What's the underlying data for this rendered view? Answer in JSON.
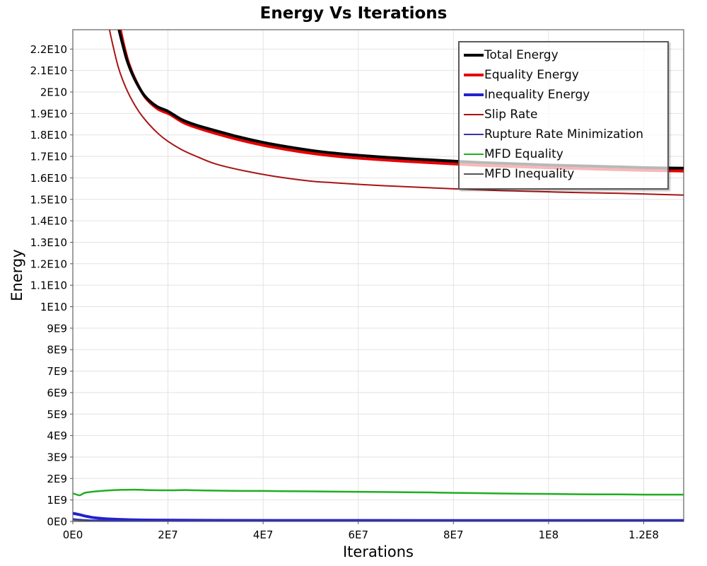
{
  "chart_data": {
    "type": "line",
    "title": "Energy Vs Iterations",
    "xlabel": "Iterations",
    "ylabel": "Energy",
    "xlim": [
      0,
      128400000
    ],
    "ylim": [
      0,
      22900000000
    ],
    "grid": true,
    "legend_position": "top-right",
    "x_ticks": [
      {
        "v": 0,
        "label": "0E0"
      },
      {
        "v": 20000000.0,
        "label": "2E7"
      },
      {
        "v": 40000000.0,
        "label": "4E7"
      },
      {
        "v": 60000000.0,
        "label": "6E7"
      },
      {
        "v": 80000000.0,
        "label": "8E7"
      },
      {
        "v": 100000000.0,
        "label": "1E8"
      },
      {
        "v": 120000000.0,
        "label": "1.2E8"
      }
    ],
    "y_ticks": [
      {
        "v": 0,
        "label": "0E0"
      },
      {
        "v": 1000000000.0,
        "label": "1E9"
      },
      {
        "v": 2000000000.0,
        "label": "2E9"
      },
      {
        "v": 3000000000.0,
        "label": "3E9"
      },
      {
        "v": 4000000000.0,
        "label": "4E9"
      },
      {
        "v": 5000000000.0,
        "label": "5E9"
      },
      {
        "v": 6000000000.0,
        "label": "6E9"
      },
      {
        "v": 7000000000.0,
        "label": "7E9"
      },
      {
        "v": 8000000000.0,
        "label": "8E9"
      },
      {
        "v": 9000000000.0,
        "label": "9E9"
      },
      {
        "v": 10000000000.0,
        "label": "1E10"
      },
      {
        "v": 11000000000.0,
        "label": "1.1E10"
      },
      {
        "v": 12000000000.0,
        "label": "1.2E10"
      },
      {
        "v": 13000000000.0,
        "label": "1.3E10"
      },
      {
        "v": 14000000000.0,
        "label": "1.4E10"
      },
      {
        "v": 15000000000.0,
        "label": "1.5E10"
      },
      {
        "v": 16000000000.0,
        "label": "1.6E10"
      },
      {
        "v": 17000000000.0,
        "label": "1.7E10"
      },
      {
        "v": 18000000000.0,
        "label": "1.8E10"
      },
      {
        "v": 19000000000.0,
        "label": "1.9E10"
      },
      {
        "v": 20000000000.0,
        "label": "2E10"
      },
      {
        "v": 21000000000.0,
        "label": "2.1E10"
      },
      {
        "v": 22000000000.0,
        "label": "2.2E10"
      }
    ],
    "series": [
      {
        "name": "Total Energy",
        "color": "#000000",
        "width": 4,
        "z": 7,
        "points": [
          [
            9700000.0,
            22900000000.0
          ],
          [
            10500000.0,
            22200000000.0
          ],
          [
            11500000.0,
            21400000000.0
          ],
          [
            13000000.0,
            20600000000.0
          ],
          [
            15000000.0,
            19850000000.0
          ],
          [
            17500000.0,
            19350000000.0
          ],
          [
            20000000.0,
            19100000000.0
          ],
          [
            23000000.0,
            18700000000.0
          ],
          [
            26000000.0,
            18450000000.0
          ],
          [
            30000000.0,
            18200000000.0
          ],
          [
            35000000.0,
            17900000000.0
          ],
          [
            40000000.0,
            17650000000.0
          ],
          [
            45000000.0,
            17450000000.0
          ],
          [
            50000000.0,
            17280000000.0
          ],
          [
            55000000.0,
            17150000000.0
          ],
          [
            60000000.0,
            17050000000.0
          ],
          [
            65000000.0,
            16970000000.0
          ],
          [
            70000000.0,
            16900000000.0
          ],
          [
            75000000.0,
            16840000000.0
          ],
          [
            80000000.0,
            16780000000.0
          ],
          [
            85000000.0,
            16720000000.0
          ],
          [
            90000000.0,
            16680000000.0
          ],
          [
            95000000.0,
            16640000000.0
          ],
          [
            100000000.0,
            16600000000.0
          ],
          [
            105000000.0,
            16570000000.0
          ],
          [
            110000000.0,
            16540000000.0
          ],
          [
            115000000.0,
            16510000000.0
          ],
          [
            120000000.0,
            16480000000.0
          ],
          [
            125000000.0,
            16460000000.0
          ],
          [
            128400000.0,
            16450000000.0
          ]
        ]
      },
      {
        "name": "Equality Energy",
        "color": "#e60000",
        "width": 4,
        "z": 6,
        "points": [
          [
            10000000.0,
            22900000000.0
          ],
          [
            10800000.0,
            22100000000.0
          ],
          [
            11800000.0,
            21300000000.0
          ],
          [
            13300000.0,
            20500000000.0
          ],
          [
            15300000.0,
            19730000000.0
          ],
          [
            17800000.0,
            19220000000.0
          ],
          [
            20300000.0,
            18970000000.0
          ],
          [
            23300000.0,
            18570000000.0
          ],
          [
            26300000.0,
            18320000000.0
          ],
          [
            30000000.0,
            18070000000.0
          ],
          [
            35000000.0,
            17770000000.0
          ],
          [
            40000000.0,
            17520000000.0
          ],
          [
            45000000.0,
            17320000000.0
          ],
          [
            50000000.0,
            17150000000.0
          ],
          [
            55000000.0,
            17020000000.0
          ],
          [
            60000000.0,
            16920000000.0
          ],
          [
            65000000.0,
            16840000000.0
          ],
          [
            70000000.0,
            16770000000.0
          ],
          [
            75000000.0,
            16710000000.0
          ],
          [
            80000000.0,
            16650000000.0
          ],
          [
            85000000.0,
            16590000000.0
          ],
          [
            90000000.0,
            16550000000.0
          ],
          [
            95000000.0,
            16510000000.0
          ],
          [
            100000000.0,
            16470000000.0
          ],
          [
            105000000.0,
            16440000000.0
          ],
          [
            110000000.0,
            16410000000.0
          ],
          [
            115000000.0,
            16380000000.0
          ],
          [
            120000000.0,
            16350000000.0
          ],
          [
            125000000.0,
            16330000000.0
          ],
          [
            128400000.0,
            16320000000.0
          ]
        ]
      },
      {
        "name": "Inequality Energy",
        "color": "#2222cc",
        "width": 4,
        "z": 2,
        "points": [
          [
            0,
            380000000.0
          ],
          [
            1500000.0,
            310000000.0
          ],
          [
            3000000.0,
            230000000.0
          ],
          [
            5000000.0,
            160000000.0
          ],
          [
            8000000.0,
            110000000.0
          ],
          [
            12000000.0,
            80000000.0
          ],
          [
            18000000.0,
            60000000.0
          ],
          [
            30000000.0,
            50000000.0
          ],
          [
            50000000.0,
            45000000.0
          ],
          [
            80000000.0,
            42000000.0
          ],
          [
            128400000.0,
            40000000.0
          ]
        ]
      },
      {
        "name": "Slip Rate",
        "color": "#a81414",
        "width": 2,
        "z": 5,
        "points": [
          [
            7700000.0,
            22900000000.0
          ],
          [
            8500000.0,
            22100000000.0
          ],
          [
            9500000.0,
            21200000000.0
          ],
          [
            10500000.0,
            20550000000.0
          ],
          [
            12000000.0,
            19800000000.0
          ],
          [
            14000000.0,
            19050000000.0
          ],
          [
            16000000.0,
            18500000000.0
          ],
          [
            18000000.0,
            18050000000.0
          ],
          [
            20000000.0,
            17700000000.0
          ],
          [
            23000000.0,
            17300000000.0
          ],
          [
            26000000.0,
            17000000000.0
          ],
          [
            30000000.0,
            16650000000.0
          ],
          [
            36000000.0,
            16330000000.0
          ],
          [
            43000000.0,
            16050000000.0
          ],
          [
            50000000.0,
            15850000000.0
          ],
          [
            55000000.0,
            15770000000.0
          ],
          [
            60000000.0,
            15700000000.0
          ],
          [
            65000000.0,
            15640000000.0
          ],
          [
            70000000.0,
            15590000000.0
          ],
          [
            75000000.0,
            15540000000.0
          ],
          [
            80000000.0,
            15490000000.0
          ],
          [
            85000000.0,
            15450000000.0
          ],
          [
            90000000.0,
            15410000000.0
          ],
          [
            95000000.0,
            15380000000.0
          ],
          [
            100000000.0,
            15350000000.0
          ],
          [
            105000000.0,
            15320000000.0
          ],
          [
            110000000.0,
            15300000000.0
          ],
          [
            115000000.0,
            15280000000.0
          ],
          [
            120000000.0,
            15250000000.0
          ],
          [
            125000000.0,
            15220000000.0
          ],
          [
            128400000.0,
            15200000000.0
          ]
        ]
      },
      {
        "name": "Rupture Rate Minimization",
        "color": "#3535ad",
        "width": 2,
        "z": 3,
        "points": [
          [
            0,
            120000000.0
          ],
          [
            2000000.0,
            80000000.0
          ],
          [
            5000000.0,
            50000000.0
          ],
          [
            12000000.0,
            35000000.0
          ],
          [
            40000000.0,
            30000000.0
          ],
          [
            80000000.0,
            28000000.0
          ],
          [
            128400000.0,
            26000000.0
          ]
        ]
      },
      {
        "name": "MFD Equality",
        "color": "#1faf1f",
        "width": 2.5,
        "z": 4,
        "points": [
          [
            0,
            1310000000.0
          ],
          [
            800000.0,
            1250000000.0
          ],
          [
            1500000.0,
            1220000000.0
          ],
          [
            2500000.0,
            1330000000.0
          ],
          [
            4000000.0,
            1380000000.0
          ],
          [
            6000000.0,
            1420000000.0
          ],
          [
            8000000.0,
            1450000000.0
          ],
          [
            10000000.0,
            1470000000.0
          ],
          [
            13000000.0,
            1480000000.0
          ],
          [
            16000000.0,
            1460000000.0
          ],
          [
            20000000.0,
            1450000000.0
          ],
          [
            24000000.0,
            1460000000.0
          ],
          [
            28000000.0,
            1440000000.0
          ],
          [
            32000000.0,
            1430000000.0
          ],
          [
            36000000.0,
            1420000000.0
          ],
          [
            40000000.0,
            1420000000.0
          ],
          [
            44000000.0,
            1410000000.0
          ],
          [
            50000000.0,
            1400000000.0
          ],
          [
            55000000.0,
            1390000000.0
          ],
          [
            60000000.0,
            1380000000.0
          ],
          [
            65000000.0,
            1370000000.0
          ],
          [
            70000000.0,
            1360000000.0
          ],
          [
            75000000.0,
            1350000000.0
          ],
          [
            80000000.0,
            1330000000.0
          ],
          [
            85000000.0,
            1320000000.0
          ],
          [
            90000000.0,
            1300000000.0
          ],
          [
            95000000.0,
            1290000000.0
          ],
          [
            100000000.0,
            1280000000.0
          ],
          [
            105000000.0,
            1270000000.0
          ],
          [
            110000000.0,
            1260000000.0
          ],
          [
            115000000.0,
            1260000000.0
          ],
          [
            120000000.0,
            1250000000.0
          ],
          [
            128400000.0,
            1250000000.0
          ]
        ]
      },
      {
        "name": "MFD Inequality",
        "color": "#555555",
        "width": 2,
        "z": 1,
        "points": [
          [
            0,
            60000000.0
          ],
          [
            3000000.0,
            30000000.0
          ],
          [
            10000000.0,
            20000000.0
          ],
          [
            50000000.0,
            18000000.0
          ],
          [
            128400000.0,
            16000000.0
          ]
        ]
      }
    ],
    "colors": {
      "plot_border": "#808080",
      "gridline": "#e2e2e2",
      "tick": "#555555",
      "legend_border": "#5a5a5a"
    }
  }
}
